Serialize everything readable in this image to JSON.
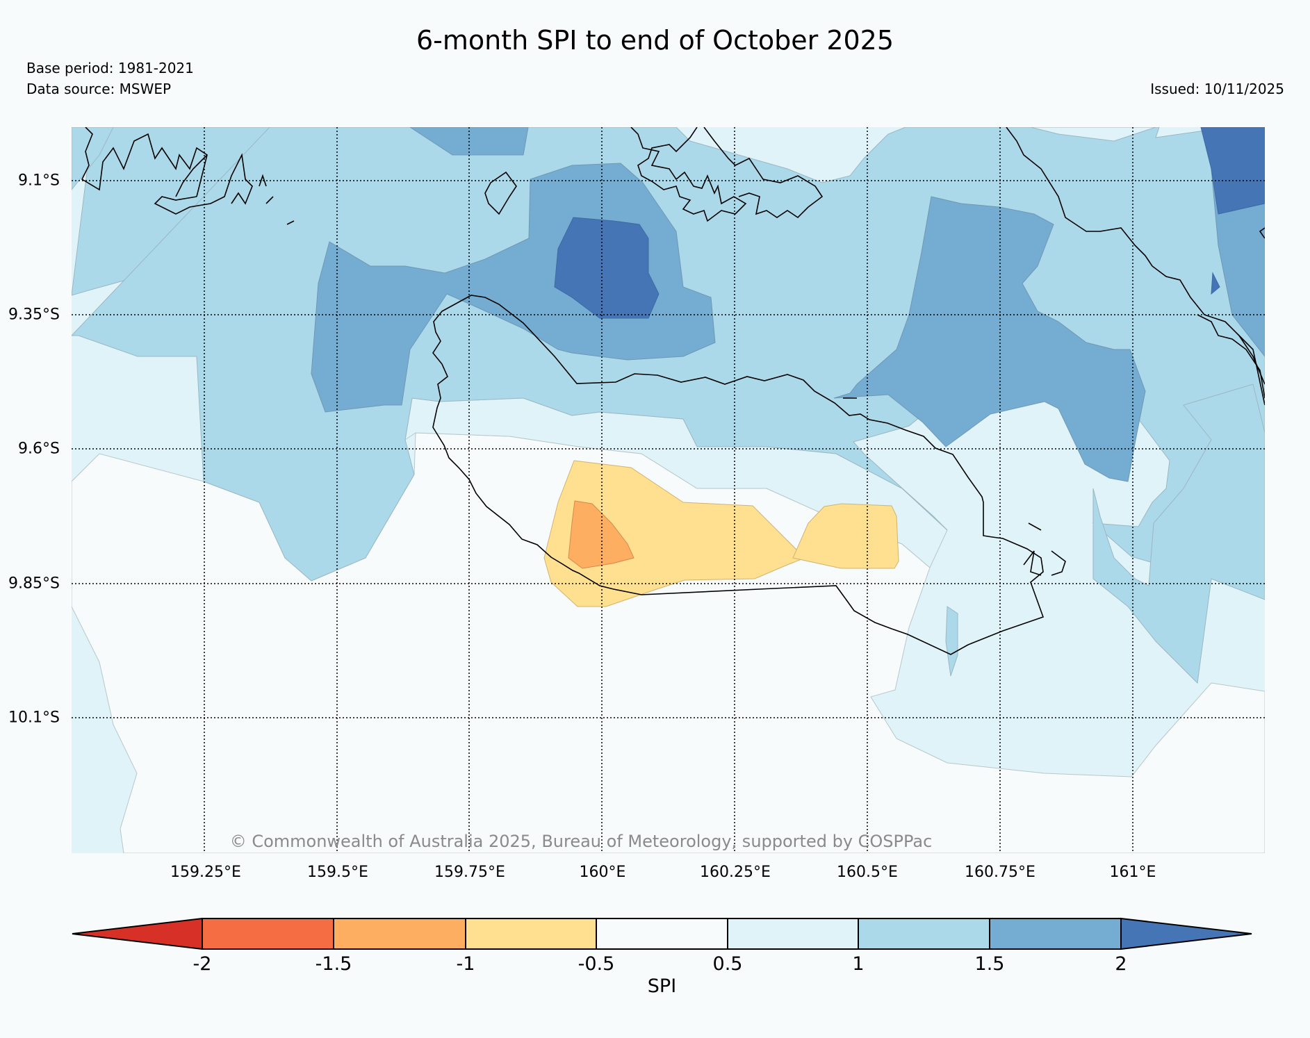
{
  "header": {
    "title": "6-month SPI to end of October 2025",
    "base_period": "Base period: 1981-2021",
    "data_source": "Data source: MSWEP",
    "issued": "Issued: 10/11/2025"
  },
  "map": {
    "lat_labels": [
      "9.1°S",
      "9.35°S",
      "9.6°S",
      "9.85°S",
      "10.1°S"
    ],
    "lon_labels": [
      "159.25°E",
      "159.5°E",
      "159.75°E",
      "160°E",
      "160.25°E",
      "160.5°E",
      "160.75°E",
      "161°E"
    ],
    "copyright": "© Commonwealth of Australia 2025, Bureau of Meteorology, supported by COSPPac"
  },
  "colorbar": {
    "label": "SPI",
    "ticks": [
      "-2",
      "-1.5",
      "-1",
      "-0.5",
      "0.5",
      "1",
      "1.5",
      "2"
    ],
    "colors": [
      "#d73027",
      "#f46d43",
      "#fdae61",
      "#fee090",
      "#f7fbfc",
      "#e0f3f8",
      "#abd9e9",
      "#74add1",
      "#4575b4"
    ]
  }
}
